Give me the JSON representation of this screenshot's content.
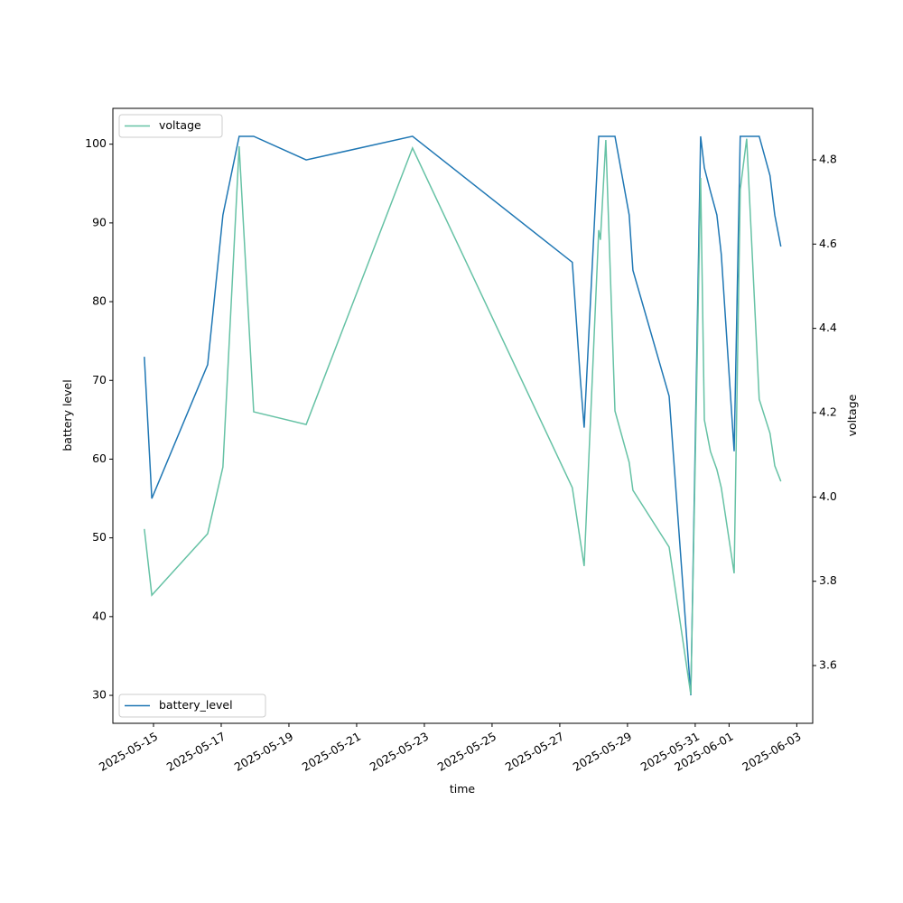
{
  "chart_data": {
    "type": "line",
    "x_label": "time",
    "y_label": "battery level",
    "y2_label": "voltage",
    "x": [
      "2025-05-14 17:30",
      "2025-05-14 22:48",
      "2025-05-16 14:24",
      "2025-05-17 01:12",
      "2025-05-17 12:43",
      "2025-05-17 23:02",
      "2025-05-19 12:14",
      "2025-05-22 15:36",
      "2025-05-27 08:53",
      "2025-05-27 14:38",
      "2025-05-27 17:17",
      "2025-05-28 03:36",
      "2025-05-28 04:48",
      "2025-05-28 08:38",
      "2025-05-28 15:07",
      "2025-05-29 01:12",
      "2025-05-29 03:50",
      "2025-05-30 05:31",
      "2025-05-30 20:53",
      "2025-05-31 03:50",
      "2025-05-31 06:29",
      "2025-05-31 10:48",
      "2025-05-31 15:22",
      "2025-05-31 18:29",
      "2025-06-01 03:36",
      "2025-06-01 07:55",
      "2025-06-01 12:29",
      "2025-06-01 21:22",
      "2025-06-02 05:02",
      "2025-06-02 08:24",
      "2025-06-02 12:43"
    ],
    "series": [
      {
        "name": "battery_level",
        "color": "#1f77b4",
        "axis": "y",
        "legend": "lower left",
        "values": [
          73,
          55,
          72,
          91,
          101,
          101,
          98,
          101,
          85,
          70,
          64,
          101,
          101,
          101,
          101,
          91,
          84,
          68,
          30,
          101,
          97,
          94,
          91,
          86,
          61,
          101,
          101,
          101,
          96,
          91,
          87
        ]
      },
      {
        "name": "voltage",
        "color": "#66c2a5",
        "axis": "y2",
        "legend": "upper left",
        "values": [
          3.924,
          3.767,
          3.913,
          4.071,
          4.832,
          4.202,
          4.172,
          4.828,
          4.022,
          3.894,
          3.836,
          4.633,
          4.61,
          4.847,
          4.204,
          4.082,
          4.016,
          3.881,
          3.531,
          4.757,
          4.183,
          4.108,
          4.065,
          4.022,
          3.819,
          4.729,
          4.85,
          4.232,
          4.151,
          4.074,
          4.037
        ]
      }
    ],
    "xlim": [
      "2025-05-13 19:12",
      "2025-06-03 11:17"
    ],
    "xticks": [
      "2025-05-15",
      "2025-05-17",
      "2025-05-19",
      "2025-05-21",
      "2025-05-23",
      "2025-05-25",
      "2025-05-27",
      "2025-05-29",
      "2025-05-31",
      "2025-06-01",
      "2025-06-03"
    ],
    "ylim": [
      26.45,
      104.55
    ],
    "yticks": [
      30,
      40,
      50,
      60,
      70,
      80,
      90,
      100
    ],
    "y2lim": [
      3.463,
      4.922
    ],
    "y2ticks": [
      3.6,
      3.8,
      {
        "value": 4,
        "label": "4.0"
      },
      4.2,
      4.4,
      4.6,
      4.8
    ]
  }
}
